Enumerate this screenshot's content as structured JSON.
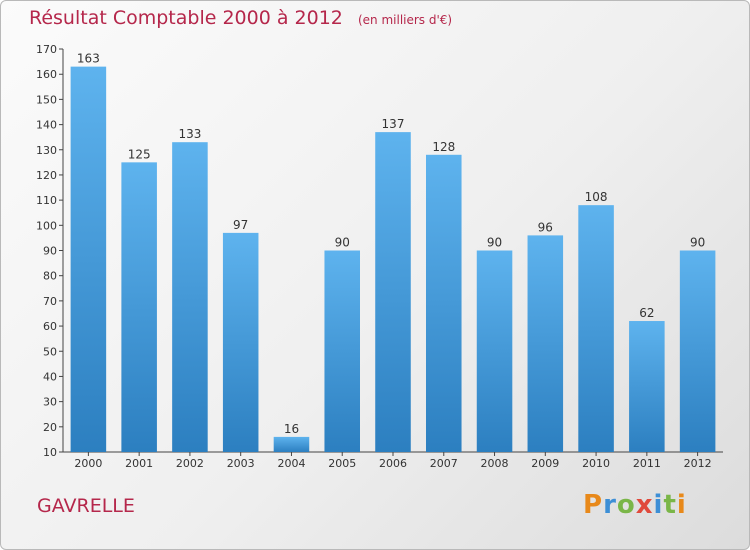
{
  "header": {
    "title": "Résultat Comptable 2000 à 2012",
    "subtitle": "(en milliers d'€)"
  },
  "footer": {
    "city": "GAVRELLE",
    "logo": "Proxiti"
  },
  "colors": {
    "title": "#b5274b",
    "bar_light": "#5eb3ee",
    "bar_dark": "#2c7fc0",
    "logo_letters": [
      "#e8891a",
      "#3d8fd6",
      "#7ab648",
      "#e04a3c",
      "#3d8fd6",
      "#7ab648",
      "#e8891a"
    ]
  },
  "chart_data": {
    "type": "bar",
    "title": "Résultat Comptable 2000 à 2012",
    "subtitle": "(en milliers d'€)",
    "categories": [
      "2000",
      "2001",
      "2002",
      "2003",
      "2004",
      "2005",
      "2006",
      "2007",
      "2008",
      "2009",
      "2010",
      "2011",
      "2012"
    ],
    "values": [
      163,
      125,
      133,
      97,
      16,
      90,
      137,
      128,
      90,
      96,
      108,
      62,
      90
    ],
    "ylim": [
      10,
      170
    ],
    "yticks": [
      10,
      20,
      30,
      40,
      50,
      60,
      70,
      80,
      90,
      100,
      110,
      120,
      130,
      140,
      150,
      160,
      170
    ],
    "grid": false,
    "legend": "none"
  }
}
